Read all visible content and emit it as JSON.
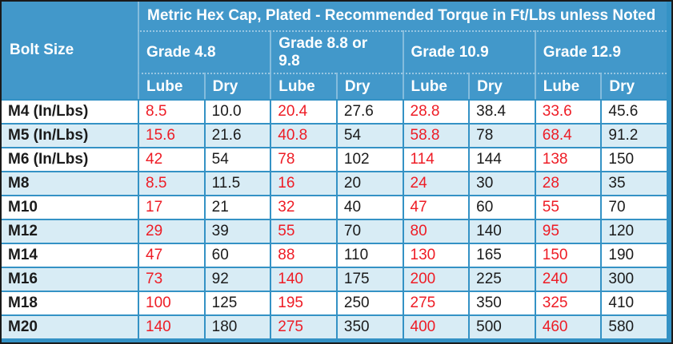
{
  "table": {
    "title": "Metric Hex Cap, Plated - Recommended Torque in Ft/Lbs unless Noted",
    "bolt_size_header": "Bolt Size",
    "grades": [
      "Grade 4.8",
      "Grade 8.8 or 9.8",
      "Grade 10.9",
      "Grade 12.9"
    ],
    "sub_headers": [
      "Lube",
      "Dry",
      "Lube",
      "Dry",
      "Lube",
      "Dry",
      "Lube",
      "Dry"
    ],
    "rows": [
      {
        "bolt": "M4 (In/Lbs)",
        "values": [
          "8.5",
          "10.0",
          "20.4",
          "27.6",
          "28.8",
          "38.4",
          "33.6",
          "45.6"
        ]
      },
      {
        "bolt": "M5 (In/Lbs)",
        "values": [
          "15.6",
          "21.6",
          "40.8",
          "54",
          "58.8",
          "78",
          "68.4",
          "91.2"
        ]
      },
      {
        "bolt": "M6 (In/Lbs)",
        "values": [
          "42",
          "54",
          "78",
          "102",
          "114",
          "144",
          "138",
          "150"
        ]
      },
      {
        "bolt": "M8",
        "values": [
          "8.5",
          "11.5",
          "16",
          "20",
          "24",
          "30",
          "28",
          "35"
        ]
      },
      {
        "bolt": "M10",
        "values": [
          "17",
          "21",
          "32",
          "40",
          "47",
          "60",
          "55",
          "70"
        ]
      },
      {
        "bolt": "M12",
        "values": [
          "29",
          "39",
          "55",
          "70",
          "80",
          "140",
          "95",
          "120"
        ]
      },
      {
        "bolt": "M14",
        "values": [
          "47",
          "60",
          "88",
          "110",
          "130",
          "165",
          "150",
          "190"
        ]
      },
      {
        "bolt": "M16",
        "values": [
          "73",
          "92",
          "140",
          "175",
          "200",
          "225",
          "240",
          "300"
        ]
      },
      {
        "bolt": "M18",
        "values": [
          "100",
          "125",
          "195",
          "250",
          "275",
          "350",
          "325",
          "410"
        ]
      },
      {
        "bolt": "M20",
        "values": [
          "140",
          "180",
          "275",
          "350",
          "400",
          "500",
          "460",
          "580"
        ]
      }
    ],
    "colors": {
      "header_bg": "#4298ca",
      "header_text": "#ffffff",
      "grid_line": "#3492c5",
      "row_bg": "#ffffff",
      "row_alt_bg": "#d8ecf5",
      "lube_text": "#ee1c25",
      "dry_text": "#1b1b1b",
      "outer_border": "#1a1a1a"
    }
  }
}
